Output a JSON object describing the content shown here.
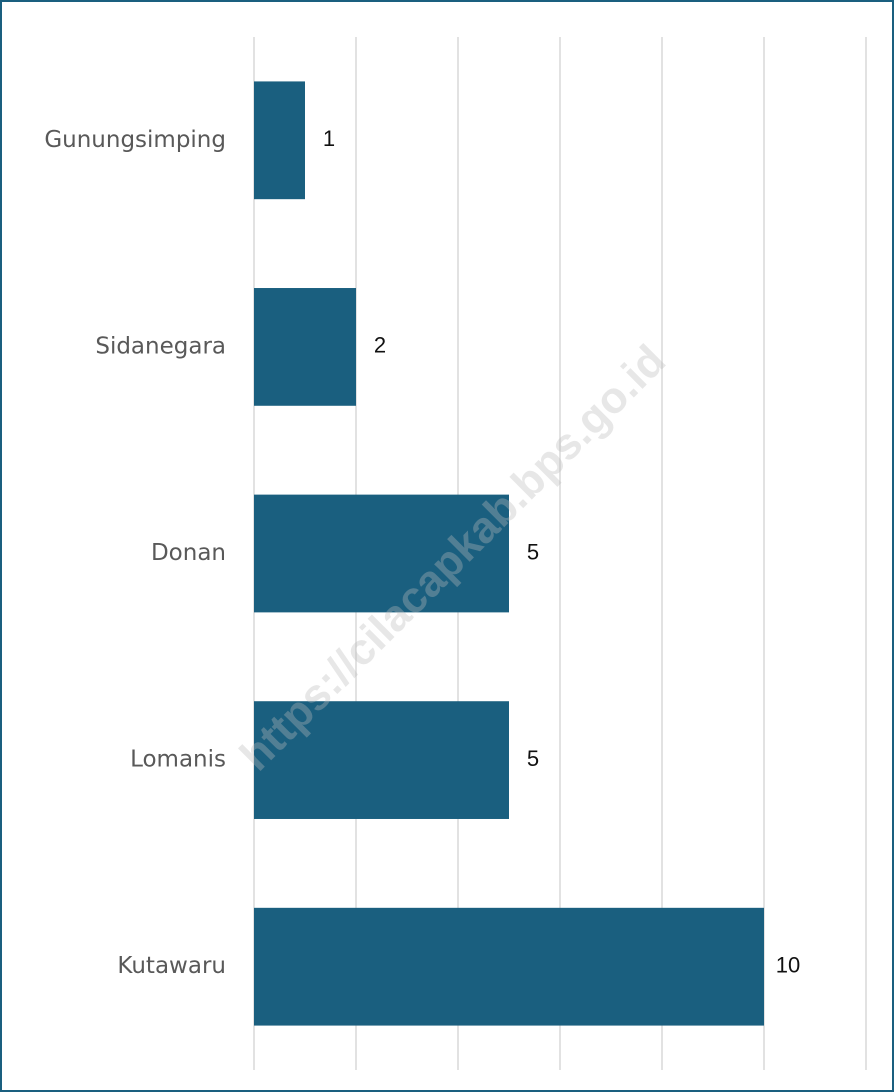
{
  "chart_data": {
    "type": "bar",
    "orientation": "horizontal",
    "categories": [
      "Gunungsimping",
      "Sidanegara",
      "Donan",
      "Lomanis",
      "Kutawaru"
    ],
    "values": [
      1,
      2,
      5,
      5,
      10
    ],
    "color": "#1a5f7f",
    "xlim": [
      0,
      12
    ],
    "xticks": [
      0,
      2,
      4,
      6,
      8,
      10,
      12
    ],
    "grid": true,
    "watermark": "https://cilacapkab.bps.go.id"
  }
}
